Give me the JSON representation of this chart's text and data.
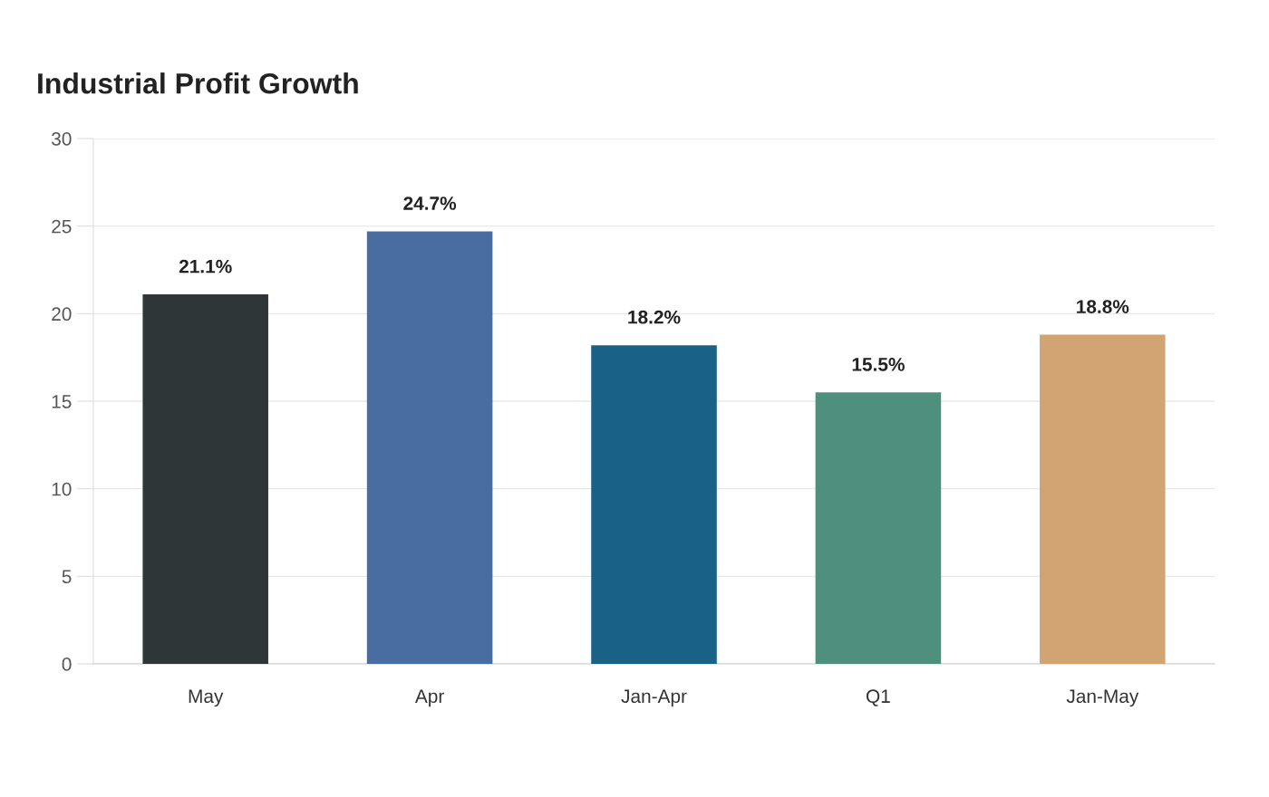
{
  "chart_data": {
    "type": "bar",
    "title": "Industrial Profit Growth",
    "categories": [
      "May",
      "Apr",
      "Jan-Apr",
      "Q1",
      "Jan-May"
    ],
    "values": [
      21.1,
      24.7,
      18.2,
      15.5,
      18.8
    ],
    "colors": [
      "#2e3638",
      "#4a6da1",
      "#1a6187",
      "#4f8f7d",
      "#d3a473"
    ],
    "value_labels": [
      "21.1%",
      "24.7%",
      "18.2%",
      "15.5%",
      "18.8%"
    ],
    "ylim": [
      0,
      30
    ],
    "yticks": [
      0,
      5,
      10,
      15,
      20,
      25,
      30
    ],
    "grid": "y"
  }
}
